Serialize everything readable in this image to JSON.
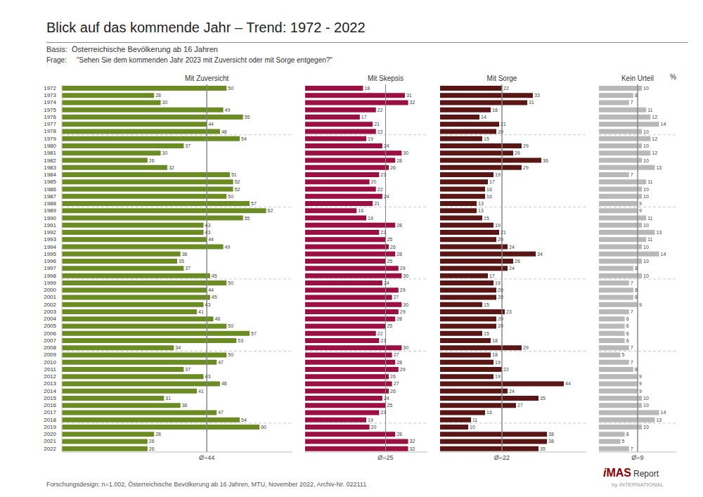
{
  "chart_data": {
    "type": "bar",
    "orientation": "horizontal",
    "title": "Blick auf das kommende Jahr – Trend: 1972 - 2022",
    "subtitle": "Basis:  Österreichische Bevölkerung ab 16 Jahren",
    "annotations": [
      "Frage:",
      "\"Sehen Sie dem kommenden Jahr 2023 mit Zuversicht oder mit Sorge entgegen?\"",
      "%",
      "Forschungsdesign: n=1.002, Österreichische Bevölkerung ab 16 Jahren, MTU, November 2022, Archiv-Nr. 022111",
      "i",
      "MAS",
      "Report",
      "by INTERNATIONAL"
    ],
    "categories": [
      "1972",
      "1973",
      "1974",
      "1975",
      "1976",
      "1977",
      "1978",
      "1979",
      "1980",
      "1981",
      "1982",
      "1983",
      "1984",
      "1985",
      "1986",
      "1987",
      "1988",
      "1989",
      "1990",
      "1991",
      "1992",
      "1993",
      "1994",
      "1995",
      "1996",
      "1997",
      "1998",
      "1999",
      "2000",
      "2001",
      "2002",
      "2003",
      "2004",
      "2005",
      "2006",
      "2007",
      "2008",
      "2009",
      "2010",
      "2011",
      "2012",
      "2013",
      "2014",
      "2015",
      "2016",
      "2017",
      "2018",
      "2019",
      "2020",
      "2021",
      "2022"
    ],
    "separators": [
      "1979",
      "1989",
      "1999",
      "2009",
      "2019"
    ],
    "series": [
      {
        "name": "Mit Zuversicht",
        "color": "#6b8c23",
        "xlim": [
          0,
          70
        ],
        "average": {
          "value": 44,
          "label": "Ø=44"
        },
        "values": [
          50,
          28,
          30,
          49,
          55,
          44,
          48,
          54,
          37,
          30,
          26,
          32,
          51,
          52,
          52,
          50,
          57,
          62,
          55,
          43,
          43,
          44,
          49,
          36,
          35,
          37,
          45,
          50,
          44,
          45,
          43,
          41,
          46,
          50,
          57,
          53,
          34,
          50,
          47,
          37,
          43,
          48,
          41,
          31,
          36,
          47,
          54,
          60,
          28,
          26,
          26
        ]
      },
      {
        "name": "Mit Skepsis",
        "color": "#9b1040",
        "xlim": [
          0,
          38
        ],
        "average": {
          "value": 25,
          "label": "Ø=25"
        },
        "values": [
          18,
          31,
          32,
          22,
          17,
          21,
          22,
          19,
          24,
          30,
          28,
          26,
          23,
          20,
          22,
          24,
          21,
          16,
          19,
          28,
          23,
          25,
          26,
          28,
          25,
          29,
          30,
          24,
          29,
          27,
          30,
          29,
          28,
          25,
          22,
          23,
          30,
          27,
          28,
          29,
          26,
          27,
          26,
          24,
          25,
          23,
          19,
          20,
          28,
          32,
          32
        ]
      },
      {
        "name": "Mit Sorge",
        "color": "#5a1515",
        "xlim": [
          0,
          52
        ],
        "average": {
          "value": 22,
          "label": "Ø=22"
        },
        "values": [
          22,
          33,
          31,
          18,
          14,
          21,
          20,
          15,
          29,
          26,
          36,
          29,
          19,
          17,
          16,
          16,
          13,
          13,
          15,
          19,
          21,
          20,
          24,
          34,
          26,
          24,
          17,
          19,
          20,
          20,
          15,
          23,
          20,
          20,
          15,
          18,
          29,
          18,
          19,
          22,
          19,
          44,
          24,
          35,
          27,
          16,
          11,
          10,
          38,
          38,
          35
        ]
      },
      {
        "name": "Kein Urteil",
        "color": "#b8b8b8",
        "xlim": [
          0,
          18
        ],
        "average": {
          "value": 9,
          "label": "Ø=9"
        },
        "values": [
          10,
          8,
          7,
          11,
          12,
          14,
          10,
          12,
          10,
          12,
          10,
          13,
          7,
          11,
          10,
          10,
          9,
          9,
          11,
          10,
          13,
          11,
          10,
          14,
          10,
          8,
          10,
          7,
          8,
          8,
          9,
          7,
          6,
          6,
          6,
          6,
          7,
          5,
          7,
          8,
          9,
          9,
          9,
          10,
          10,
          14,
          13,
          10,
          6,
          5,
          7
        ]
      }
    ],
    "data_labels": true,
    "tick_labels": "y",
    "grid": false
  }
}
